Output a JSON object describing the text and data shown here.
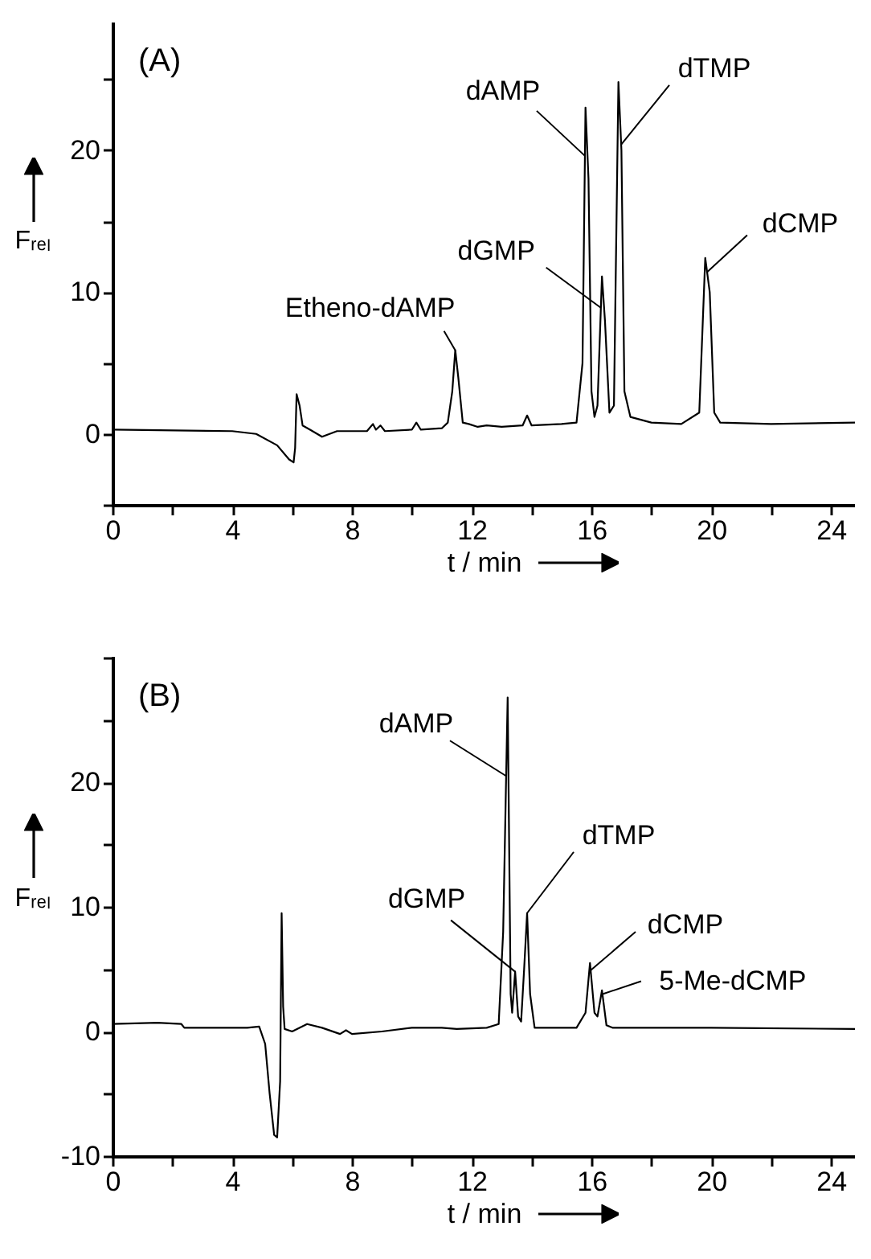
{
  "chart_data": [
    {
      "type": "line",
      "xlabel": "t / min",
      "ylabel": "Fᵣₑₗ",
      "xlim": [
        0,
        24.8
      ],
      "ylim": [
        -5,
        29
      ],
      "xticks": [
        0,
        {
          "value": 2,
          "label": null
        },
        4,
        {
          "value": 6,
          "label": null
        },
        8,
        {
          "value": 10,
          "label": null
        },
        12,
        {
          "value": 14,
          "label": null
        },
        16,
        {
          "value": 18,
          "label": null
        },
        20,
        {
          "value": 22,
          "label": null
        },
        24
      ],
      "yticks": [
        {
          "value": -5,
          "label": null
        },
        0,
        {
          "value": 5,
          "label": null
        },
        10,
        {
          "value": 15,
          "label": null
        },
        20,
        {
          "value": 25,
          "label": null
        }
      ],
      "x": [
        0,
        4,
        4.8,
        5.5,
        5.9,
        6.05,
        6.1,
        6.15,
        6.25,
        6.35,
        6.6,
        7.0,
        7.5,
        8.5,
        8.7,
        8.8,
        8.95,
        9.1,
        10.0,
        10.15,
        10.3,
        11.0,
        11.2,
        11.35,
        11.45,
        11.55,
        11.7,
        11.9,
        12.2,
        12.5,
        13,
        13.7,
        13.85,
        14.0,
        15,
        15.5,
        15.7,
        15.8,
        15.9,
        16.0,
        16.1,
        16.2,
        16.35,
        16.45,
        16.6,
        16.75,
        16.9,
        17.0,
        17.1,
        17.3,
        18,
        19,
        19.6,
        19.8,
        19.95,
        20.1,
        20.3,
        22,
        24.8
      ],
      "series": [
        {
          "color": "#000000",
          "values": [
            0.3,
            0.2,
            0.0,
            -0.8,
            -1.8,
            -2.0,
            -1.0,
            2.8,
            2.0,
            0.6,
            0.3,
            -0.2,
            0.2,
            0.2,
            0.7,
            0.3,
            0.6,
            0.2,
            0.3,
            0.8,
            0.3,
            0.4,
            0.8,
            3,
            5.9,
            4,
            0.8,
            0.7,
            0.5,
            0.6,
            0.5,
            0.6,
            1.3,
            0.6,
            0.7,
            0.8,
            5,
            23,
            18,
            3,
            1.2,
            2,
            11.1,
            8,
            1.5,
            2,
            24.8,
            20,
            3,
            1.2,
            0.8,
            0.7,
            1.5,
            12.4,
            10,
            1.5,
            0.8,
            0.7,
            0.8
          ]
        }
      ],
      "annotations": [
        "(A)",
        {
          "text": "Etheno-dAMP",
          "x": 11.45,
          "y": 5.9
        },
        {
          "text": "dAMP",
          "x": 15.78,
          "y": 19.6
        },
        {
          "text": "dGMP",
          "x": 16.31,
          "y": 8.9
        },
        {
          "text": "dTMP",
          "x": 16.99,
          "y": 20.4
        },
        {
          "text": "dCMP",
          "x": 19.86,
          "y": 11.4
        }
      ]
    },
    {
      "type": "line",
      "xlabel": "t / min",
      "ylabel": "Fᵣₑₗ",
      "xlim": [
        0,
        24.8
      ],
      "ylim": [
        -10,
        30
      ],
      "xticks": [
        0,
        {
          "value": 2,
          "label": null
        },
        4,
        {
          "value": 6,
          "label": null
        },
        8,
        {
          "value": 10,
          "label": null
        },
        12,
        {
          "value": 14,
          "label": null
        },
        16,
        {
          "value": 18,
          "label": null
        },
        20,
        {
          "value": 22,
          "label": null
        },
        24
      ],
      "yticks": [
        -10,
        {
          "value": -5,
          "label": null
        },
        0,
        {
          "value": 5,
          "label": null
        },
        10,
        {
          "value": 15,
          "label": null
        },
        20,
        {
          "value": 25,
          "label": null
        },
        {
          "value": 30,
          "label": null
        }
      ],
      "x": [
        0,
        1.5,
        2.3,
        2.4,
        4.5,
        4.9,
        5.1,
        5.25,
        5.4,
        5.5,
        5.6,
        5.65,
        5.7,
        5.75,
        6.0,
        6.5,
        7,
        7.6,
        7.8,
        8,
        9,
        10,
        11,
        11.5,
        12.5,
        12.9,
        13.05,
        13.2,
        13.3,
        13.35,
        13.45,
        13.55,
        13.65,
        13.75,
        13.85,
        13.95,
        14.1,
        15.5,
        15.8,
        15.95,
        16.1,
        16.2,
        16.35,
        16.5,
        16.7,
        20,
        24.8
      ],
      "series": [
        {
          "color": "#000000",
          "values": [
            0.6,
            0.7,
            0.6,
            0.3,
            0.3,
            0.4,
            -1,
            -5,
            -8.3,
            -8.5,
            -4,
            9.5,
            2,
            0.2,
            0,
            0.6,
            0.3,
            -0.2,
            0.1,
            -0.2,
            0,
            0.3,
            0.3,
            0.2,
            0.3,
            0.6,
            8,
            26.8,
            3,
            1.5,
            4.8,
            1.2,
            0.8,
            5,
            9.5,
            3,
            0.3,
            0.3,
            1.5,
            5.5,
            1.5,
            1.2,
            3.3,
            0.5,
            0.3,
            0.3,
            0.2
          ]
        }
      ],
      "annotations": [
        "(B)",
        {
          "text": "dAMP",
          "x": 13.15,
          "y": 20.5
        },
        {
          "text": "dGMP",
          "x": 13.45,
          "y": 4.8
        },
        {
          "text": "dTMP",
          "x": 13.85,
          "y": 9.5
        },
        {
          "text": "dCMP",
          "x": 15.97,
          "y": 4.9
        },
        {
          "text": "5-Me-dCMP",
          "x": 16.37,
          "y": 3.0
        }
      ]
    }
  ]
}
